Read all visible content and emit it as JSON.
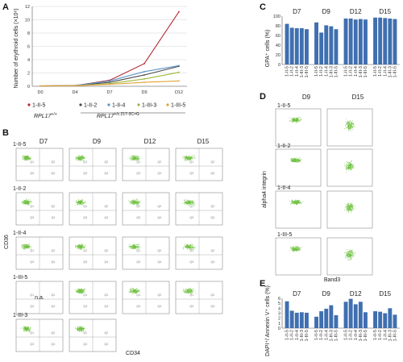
{
  "panels": {
    "A": {
      "letter": "A",
      "chart_data": {
        "type": "line",
        "x": [
          "D0",
          "D4",
          "D7",
          "D9",
          "D12"
        ],
        "ylabel": "Number of erythroid cells (×10⁶)",
        "ylim": [
          0,
          12
        ],
        "yticks": [
          0,
          2,
          4,
          6,
          8,
          10,
          12
        ],
        "series": [
          {
            "name": "1-II-5",
            "color": "#b52a35",
            "values": [
              0.05,
              0.1,
              0.9,
              3.4,
              11.2
            ]
          },
          {
            "name": "1-II-2",
            "color": "#4a4a4a",
            "values": [
              0.05,
              0.1,
              0.6,
              1.7,
              3.0
            ]
          },
          {
            "name": "1-II-4",
            "color": "#5b93c7",
            "values": [
              0.05,
              0.1,
              0.8,
              2.2,
              3.1
            ]
          },
          {
            "name": "1-III-3",
            "color": "#9bb83c",
            "values": [
              0.05,
              0.08,
              0.4,
              1.1,
              2.1
            ]
          },
          {
            "name": "1-III-5",
            "color": "#e2a33a",
            "values": [
              0.05,
              0.08,
              0.3,
              0.6,
              0.8
            ]
          }
        ]
      },
      "genotype_wt": "RPL17",
      "genotype_wt_sup": "+/+",
      "genotype_mut": "RPL17",
      "genotype_mut_sup": "+/c.217-3C>G"
    },
    "C": {
      "letter": "C",
      "chart_data": {
        "type": "bar",
        "ylabel": "GPA⁺ cells (%)",
        "ylim": [
          0,
          100
        ],
        "yticks": [
          0,
          20,
          40,
          60,
          80,
          100
        ],
        "color": "#3f6fb0",
        "groups": [
          {
            "day": "D7",
            "categories": [
              "1-II-5",
              "1-II-2",
              "1-II-4",
              "1-III-3",
              "1-III-5"
            ],
            "values": [
              84,
              76,
              75,
              75,
              73
            ]
          },
          {
            "day": "D9",
            "categories": [
              "1-II-5",
              "1-II-2",
              "1-II-4",
              "1-III-3",
              "1-III-5"
            ],
            "values": [
              87,
              66,
              81,
              79,
              73
            ]
          },
          {
            "day": "D12",
            "categories": [
              "1-II-5",
              "1-II-2",
              "1-II-4",
              "1-III-3",
              "1-III-5"
            ],
            "values": [
              95,
              95,
              93,
              94,
              93
            ]
          },
          {
            "day": "D15",
            "categories": [
              "1-II-5",
              "1-II-2",
              "1-II-4",
              "1-III-3",
              "1-III-5"
            ],
            "values": [
              97,
              97,
              96,
              95,
              94
            ]
          }
        ]
      }
    },
    "E": {
      "letter": "E",
      "chart_data": {
        "type": "bar",
        "ylabel": "DAPI⁺/ Annexin V⁺ cells (%)",
        "ylim": [
          0,
          6
        ],
        "yticks": [
          0,
          1,
          2,
          3,
          4,
          5,
          6
        ],
        "color": "#3f6fb0",
        "groups": [
          {
            "day": "D7",
            "categories": [
              "1-II-5",
              "1-II-2",
              "1-II-4",
              "1-III-3",
              "1-III-5"
            ],
            "values": [
              5.4,
              3.5,
              3.1,
              3.2,
              3.1
            ]
          },
          {
            "day": "D9",
            "categories": [
              "1-II-5",
              "1-II-2",
              "1-II-4",
              "1-III-3",
              "1-III-5"
            ],
            "values": [
              2.3,
              3.4,
              3.9,
              4.6,
              2.6
            ]
          },
          {
            "day": "D12",
            "categories": [
              "1-II-5",
              "1-II-2",
              "1-II-4",
              "1-III-3",
              "1-III-5"
            ],
            "values": [
              5.3,
              5.9,
              4.8,
              5.3,
              3.2
            ]
          },
          {
            "day": "D15",
            "categories": [
              "1-II-5",
              "1-II-2",
              "1-II-4",
              "1-III-3",
              "1-III-5"
            ],
            "values": [
              3.4,
              3.3,
              3.0,
              4.0,
              2.7
            ]
          }
        ]
      }
    },
    "B": {
      "letter": "B",
      "days": [
        "D7",
        "D9",
        "D12",
        "D15"
      ],
      "rows": [
        "1-II-5",
        "1-II-2",
        "1-II-4",
        "1-III-5",
        "1-III-3"
      ],
      "xlabel": "CD34",
      "ylabel": "CD36",
      "na_text": "n.a.",
      "quadrant_labels": [
        "Q1",
        "Q2",
        "Q3",
        "Q4"
      ],
      "availability": [
        [
          true,
          true,
          true,
          true
        ],
        [
          true,
          true,
          true,
          true
        ],
        [
          true,
          true,
          true,
          true
        ],
        [
          false,
          true,
          true,
          true
        ],
        [
          true,
          true,
          false,
          false
        ]
      ],
      "dot_color": "#6cbf3c"
    },
    "D": {
      "letter": "D",
      "days": [
        "D9",
        "D15"
      ],
      "rows": [
        "1-II-5",
        "1-II-2",
        "1-II-4",
        "1-III-5"
      ],
      "xlabel": "Band3",
      "ylabel": "alpha4 integrin",
      "dot_color": "#6cbf3c"
    }
  }
}
